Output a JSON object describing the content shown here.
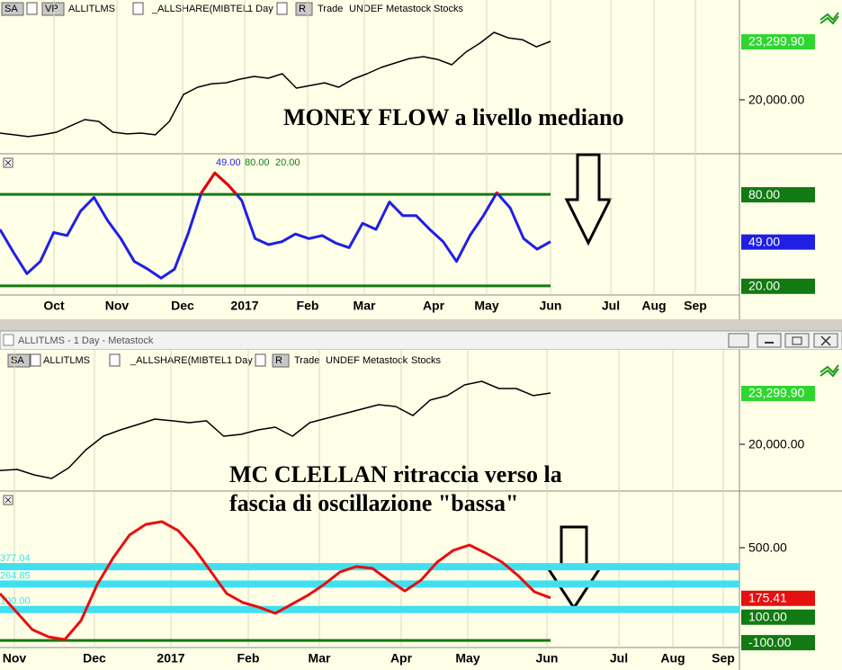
{
  "top_window": {
    "toolbar": [
      "SA",
      "VP",
      "ALLITLMS",
      "_ALLSHARE(MIBTEL",
      "1 Day",
      "R",
      "Trade",
      "UNDEF",
      "Metastock",
      "Stocks"
    ],
    "annotation": "MONEY FLOW a livello mediano",
    "price": {
      "type": "line",
      "color": "#000000",
      "values": [
        18120,
        18020,
        17920,
        18020,
        18170,
        18530,
        18880,
        18780,
        18170,
        18070,
        18120,
        18020,
        18780,
        20300,
        20710,
        20910,
        20960,
        21170,
        21320,
        21220,
        21470,
        20660,
        20810,
        20960,
        20710,
        21170,
        21470,
        21830,
        22080,
        22330,
        22440,
        22280,
        21980,
        22690,
        23200,
        23810,
        23500,
        23400,
        22990,
        23300
      ],
      "ylim": [
        17000,
        25640
      ],
      "yticks": [
        {
          "value": 20000,
          "label": "20,000.00"
        }
      ],
      "last": {
        "value": 23299.9,
        "label": "23,299.90"
      },
      "last_color": "#2fd62f"
    },
    "indicator": {
      "type": "line",
      "color": "#1f1fe6",
      "overbought_color": "#e60000",
      "level_color": "#127a12",
      "values": [
        57,
        42,
        28,
        36,
        55,
        53,
        69,
        78,
        63,
        51,
        36,
        31,
        25,
        31,
        54,
        81,
        94,
        86,
        76,
        51,
        47,
        49,
        54,
        51,
        53,
        48,
        45,
        61,
        57,
        75,
        66,
        66,
        57,
        49,
        36,
        53,
        66,
        81,
        71,
        51,
        44,
        49
      ],
      "ylim": [
        14,
        106
      ],
      "levels": [
        {
          "value": 80,
          "label": "80.00"
        },
        {
          "value": 20,
          "label": "20.00"
        }
      ],
      "last": {
        "value": 49,
        "label": "49.00"
      }
    },
    "dates": [
      "Oct",
      "Nov",
      "Dec",
      "2017",
      "Feb",
      "Mar",
      "Apr",
      "May",
      "Jun",
      "Jul",
      "Aug",
      "Sep"
    ]
  },
  "bottom_window": {
    "title": "ALLITLMS - 1 Day - Metastock",
    "toolbar": [
      "SA",
      "ALLITLMS",
      "_ALLSHARE(MIBTEL",
      "1 Day",
      "R",
      "Trade",
      "UNDEF",
      "Metastock",
      "Stocks"
    ],
    "annotation": [
      "MC CLELLAN ritraccia verso la",
      "fascia di oscillazione \"bassa\""
    ],
    "price": {
      "type": "line",
      "color": "#000000",
      "values": [
        18320,
        18380,
        18030,
        17800,
        18490,
        19650,
        20520,
        20930,
        21270,
        21620,
        21510,
        21390,
        21510,
        20520,
        20640,
        20930,
        21100,
        20520,
        21390,
        21680,
        21970,
        22260,
        22550,
        22430,
        21850,
        22840,
        23130,
        23820,
        24050,
        23590,
        23590,
        23130,
        23300
      ],
      "ylim": [
        17050,
        26020
      ],
      "yticks": [
        {
          "value": 20000,
          "label": "20,000.00"
        }
      ],
      "last": {
        "value": 23299.9,
        "label": "23,299.90"
      },
      "last_color": "#2fd62f"
    },
    "indicator": {
      "type": "line",
      "color": "#e61010",
      "level_color": "#127a12",
      "band_color": "#40e0f0",
      "values": [
        203,
        86,
        -30,
        -77,
        -94,
        28,
        261,
        436,
        582,
        651,
        669,
        611,
        494,
        349,
        203,
        145,
        115,
        75,
        133,
        191,
        261,
        343,
        378,
        366,
        290,
        220,
        290,
        407,
        483,
        517,
        465,
        407,
        319,
        215,
        175
      ],
      "ylim": [
        -146,
        855
      ],
      "yticks": [
        {
          "value": 500,
          "label": "500.00"
        }
      ],
      "bands": [
        {
          "value": 377.04,
          "label": "377.04"
        },
        {
          "value": 264.85,
          "label": "264.85"
        },
        {
          "value": 100,
          "label": "100.00"
        }
      ],
      "levels": [
        {
          "value": 100,
          "label": "100.00"
        },
        {
          "value": -100,
          "label": "-100.00"
        }
      ],
      "last": {
        "value": 175.41,
        "label": "175.41"
      }
    },
    "dates": [
      "Nov",
      "Dec",
      "2017",
      "Feb",
      "Mar",
      "Apr",
      "May",
      "Jun",
      "Jul",
      "Aug",
      "Sep"
    ]
  }
}
